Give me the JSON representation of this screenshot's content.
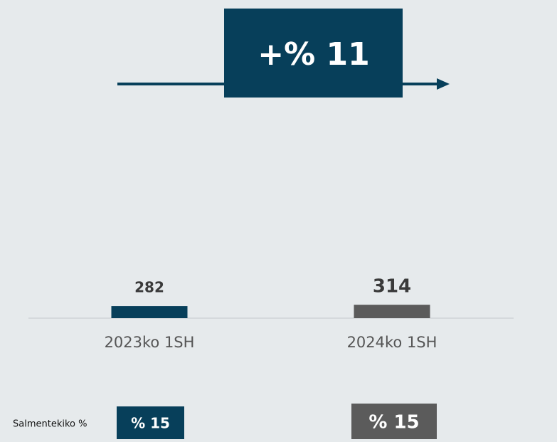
{
  "chart_data": {
    "type": "bar",
    "annotation": "+% 11",
    "categories": [
      "2023ko 1SH",
      "2024ko 1SH"
    ],
    "values": [
      282,
      314
    ],
    "colors": [
      "#073f5a",
      "#5b5b5b"
    ],
    "margin_title": "Salmentekiko %",
    "margin_labels": [
      "% 15",
      "% 15"
    ]
  }
}
